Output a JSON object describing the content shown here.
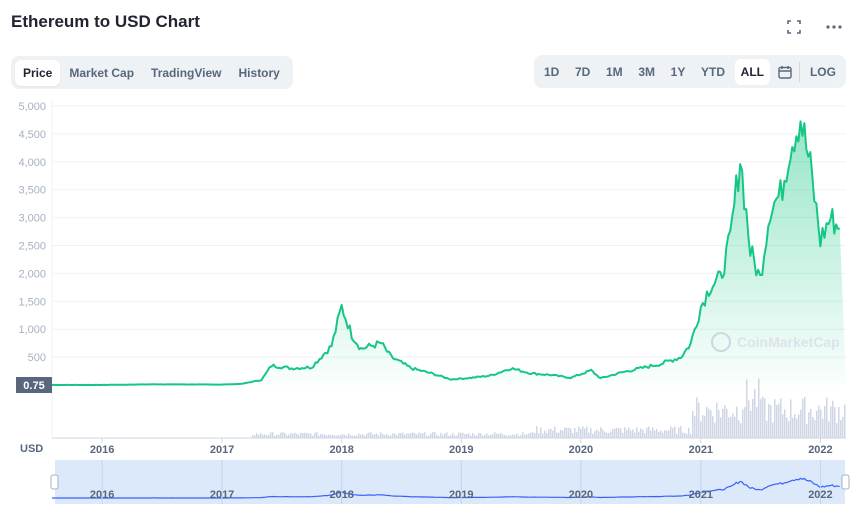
{
  "header": {
    "title": "Ethereum to USD Chart"
  },
  "top_icons": [
    "fullscreen-icon",
    "more-icon"
  ],
  "tabs": [
    {
      "label": "Price",
      "active": true
    },
    {
      "label": "Market Cap",
      "active": false
    },
    {
      "label": "TradingView",
      "active": false
    },
    {
      "label": "History",
      "active": false
    }
  ],
  "ranges": [
    {
      "label": "1D",
      "active": false
    },
    {
      "label": "7D",
      "active": false
    },
    {
      "label": "1M",
      "active": false
    },
    {
      "label": "3M",
      "active": false
    },
    {
      "label": "1Y",
      "active": false
    },
    {
      "label": "YTD",
      "active": false
    },
    {
      "label": "ALL",
      "active": true
    }
  ],
  "log_label": "LOG",
  "currency_label": "USD",
  "watermark": "CoinMarketCap",
  "colors": {
    "line": "#16c784",
    "area": "#16c784",
    "volume": "#cfd6e4",
    "navigator_fill": "#dbe9fb",
    "navigator_line": "#3861fb",
    "price_tag": "#58667e"
  },
  "chart_data": {
    "type": "area",
    "title": "",
    "xlabel": "",
    "ylabel": "",
    "ylim": [
      0,
      5000
    ],
    "yticks": [
      "5,000",
      "4,500",
      "4,000",
      "3,500",
      "3,000",
      "2,500",
      "2,000",
      "1,500",
      "1,000",
      "500"
    ],
    "x_ticks": [
      "2016",
      "2017",
      "2018",
      "2019",
      "2020",
      "2021",
      "2022"
    ],
    "current_price_label": "0.75",
    "series": [
      {
        "x": [
          "2015-08",
          "2016-01",
          "2016-06",
          "2017-01",
          "2017-03",
          "2017-05",
          "2017-06",
          "2017-08",
          "2017-10",
          "2017-12",
          "2018-01",
          "2018-02",
          "2018-03",
          "2018-05",
          "2018-06",
          "2018-08",
          "2018-10",
          "2018-12",
          "2019-02",
          "2019-04",
          "2019-06",
          "2019-08",
          "2019-10",
          "2019-12",
          "2020-02",
          "2020-03",
          "2020-05",
          "2020-07",
          "2020-09",
          "2020-11",
          "2020-12",
          "2021-01",
          "2021-02",
          "2021-03",
          "2021-04",
          "2021-05",
          "2021-06",
          "2021-07",
          "2021-08",
          "2021-09",
          "2021-10",
          "2021-11",
          "2021-12",
          "2022-01",
          "2022-02",
          "2022-03"
        ],
        "values": [
          0.75,
          1,
          12,
          8,
          20,
          90,
          350,
          300,
          320,
          700,
          1400,
          900,
          650,
          750,
          500,
          300,
          210,
          100,
          130,
          170,
          300,
          210,
          180,
          130,
          260,
          120,
          220,
          300,
          380,
          500,
          740,
          1400,
          1800,
          1900,
          2600,
          4100,
          2400,
          1900,
          3200,
          3400,
          4300,
          4800,
          3900,
          2600,
          3000,
          2800
        ]
      }
    ],
    "legend": "none",
    "grid": true
  }
}
